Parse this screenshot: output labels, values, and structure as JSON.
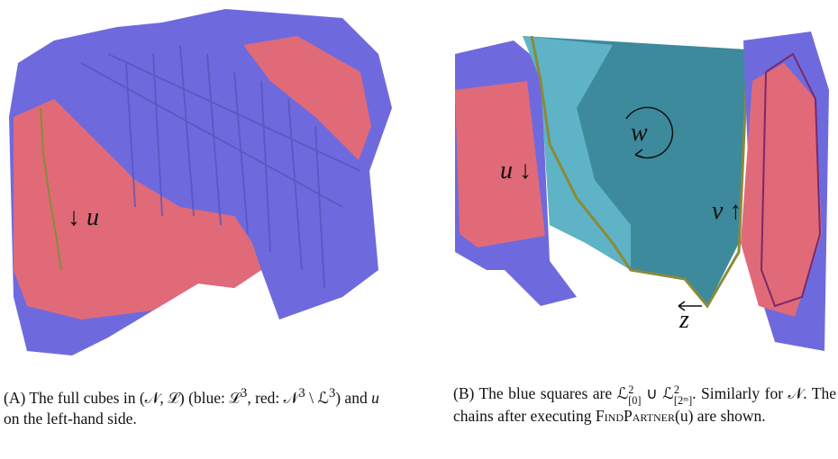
{
  "panel_a": {
    "label_u": "↓ u",
    "caption": {
      "lead": "(A) The full cubes in (𝒩, ℒ) (blue: ℒ",
      "e1": "3",
      "mid": ", red:",
      "n": "𝒩",
      "e2": "3",
      "minus": "\\ ℒ",
      "e3": "3",
      "tail": ") and",
      "u": "u",
      "end": "on the left-hand side."
    }
  },
  "panel_b": {
    "label_u": "u ↓",
    "label_w": "w",
    "label_v": "v ↑",
    "label_z": "z",
    "caption": {
      "lead": "(B) The blue squares are",
      "sym1": "ℒ",
      "sup1": "2",
      "sub1": "[0]",
      "union": "∪",
      "sym2": "ℒ",
      "sup2": "2",
      "sub2": "[2ᵐ]",
      "rest": ". Similarly for 𝒩. The chains after executing",
      "func": "FindPartner",
      "arg": "(u) are shown."
    }
  }
}
